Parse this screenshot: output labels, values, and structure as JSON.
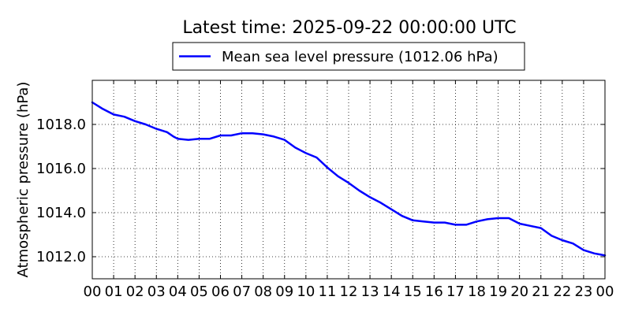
{
  "chart_data": {
    "type": "line",
    "title": "Latest time: 2025-09-22 00:00:00 UTC",
    "xlabel": "",
    "ylabel": "Atmospheric pressure (hPa)",
    "xlim": [
      0,
      24
    ],
    "ylim": [
      1011.0,
      1020.0
    ],
    "grid": true,
    "grid_style": "dotted",
    "legend": {
      "position": "top-center",
      "entries": [
        "Mean sea level pressure (1012.06 hPa)"
      ]
    },
    "x_ticks": [
      0,
      1,
      2,
      3,
      4,
      5,
      6,
      7,
      8,
      9,
      10,
      11,
      12,
      13,
      14,
      15,
      16,
      17,
      18,
      19,
      20,
      21,
      22,
      23,
      24
    ],
    "x_tick_labels": [
      "00",
      "01",
      "02",
      "03",
      "04",
      "05",
      "06",
      "07",
      "08",
      "09",
      "10",
      "11",
      "12",
      "13",
      "14",
      "15",
      "16",
      "17",
      "18",
      "19",
      "20",
      "21",
      "22",
      "23",
      "00"
    ],
    "y_ticks": [
      1012.0,
      1014.0,
      1016.0,
      1018.0
    ],
    "y_tick_labels": [
      "1012.0",
      "1014.0",
      "1016.0",
      "1018.0"
    ],
    "series": [
      {
        "name": "Mean sea level pressure (1012.06 hPa)",
        "color": "#0000ff",
        "x": [
          0,
          0.5,
          1,
          1.5,
          2,
          2.5,
          3,
          3.5,
          3.8,
          4,
          4.5,
          5,
          5.5,
          6,
          6.5,
          7,
          7.5,
          8,
          8.5,
          9,
          9.5,
          10,
          10.5,
          11,
          11.5,
          12,
          12.5,
          13,
          13.5,
          14,
          14.5,
          15,
          15.5,
          16,
          16.5,
          17,
          17.5,
          18,
          18.5,
          19,
          19.5,
          20,
          20.5,
          21,
          21.5,
          22,
          22.5,
          23,
          23.5,
          24
        ],
        "y": [
          1019.0,
          1018.7,
          1018.45,
          1018.35,
          1018.15,
          1018.0,
          1017.8,
          1017.65,
          1017.45,
          1017.35,
          1017.3,
          1017.35,
          1017.35,
          1017.5,
          1017.5,
          1017.6,
          1017.6,
          1017.55,
          1017.45,
          1017.3,
          1016.95,
          1016.7,
          1016.5,
          1016.05,
          1015.65,
          1015.35,
          1015.0,
          1014.7,
          1014.45,
          1014.15,
          1013.85,
          1013.65,
          1013.6,
          1013.55,
          1013.55,
          1013.45,
          1013.45,
          1013.6,
          1013.7,
          1013.75,
          1013.75,
          1013.5,
          1013.4,
          1013.3,
          1012.95,
          1012.75,
          1012.6,
          1012.3,
          1012.15,
          1012.06
        ]
      }
    ]
  }
}
